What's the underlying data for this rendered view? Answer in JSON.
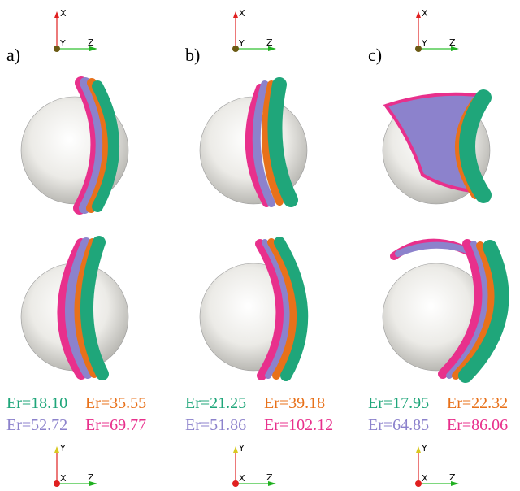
{
  "panels": [
    {
      "label": "a)",
      "top_axes": {
        "up": "X",
        "center": "Y",
        "right": "Z"
      },
      "bottom_axes": {
        "up": "Y",
        "center": "X",
        "right": "Z"
      },
      "legend": [
        {
          "text": "Er=18.10",
          "color": "#1fa67a"
        },
        {
          "text": "Er=35.55",
          "color": "#e8711a"
        },
        {
          "text": "Er=52.72",
          "color": "#8c82cc"
        },
        {
          "text": "Er=69.77",
          "color": "#e8308c"
        }
      ]
    },
    {
      "label": "b)",
      "top_axes": {
        "up": "X",
        "center": "Y",
        "right": "Z"
      },
      "bottom_axes": {
        "up": "Y",
        "center": "X",
        "right": "Z"
      },
      "legend": [
        {
          "text": "Er=21.25",
          "color": "#1fa67a"
        },
        {
          "text": "Er=39.18",
          "color": "#e8711a"
        },
        {
          "text": "Er=51.86",
          "color": "#8c82cc"
        },
        {
          "text": "Er=102.12",
          "color": "#e8308c"
        }
      ]
    },
    {
      "label": "c)",
      "top_axes": {
        "up": "X",
        "center": "Y",
        "right": "Z"
      },
      "bottom_axes": {
        "up": "Y",
        "center": "X",
        "right": "Z"
      },
      "legend": [
        {
          "text": "Er=17.95",
          "color": "#1fa67a"
        },
        {
          "text": "Er=22.32",
          "color": "#e8711a"
        },
        {
          "text": "Er=64.85",
          "color": "#8c82cc"
        },
        {
          "text": "Er=86.06",
          "color": "#e8308c"
        }
      ]
    }
  ]
}
